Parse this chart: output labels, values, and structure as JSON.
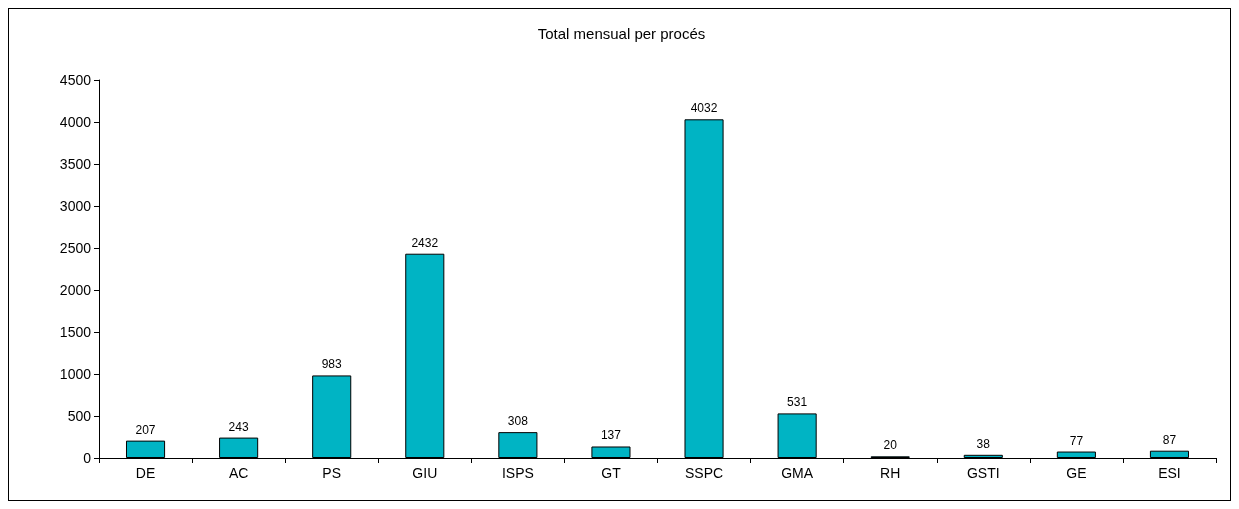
{
  "chart_data": {
    "type": "bar",
    "title": "Total mensual per procés",
    "categories": [
      "DE",
      "AC",
      "PS",
      "GIU",
      "ISPS",
      "GT",
      "SSPC",
      "GMA",
      "RH",
      "GSTI",
      "GE",
      "ESI"
    ],
    "values": [
      207,
      243,
      983,
      2432,
      308,
      137,
      4032,
      531,
      20,
      38,
      77,
      87
    ],
    "color": "#00b4c4",
    "ylim": [
      0,
      4500
    ],
    "yticks": [
      0,
      500,
      1000,
      1500,
      2000,
      2500,
      3000,
      3500,
      4000,
      4500
    ],
    "grid": false,
    "data_labels": true
  }
}
